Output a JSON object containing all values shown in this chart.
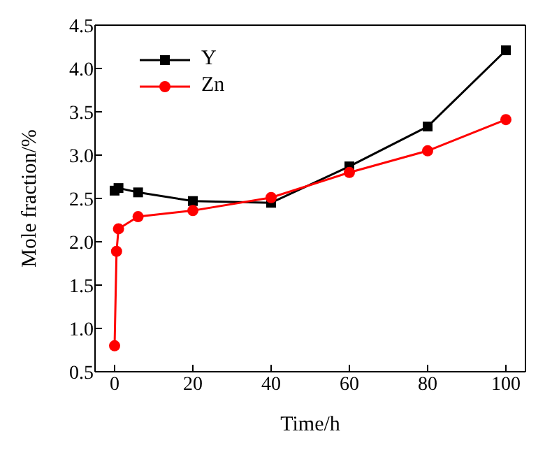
{
  "chart_data": {
    "type": "line",
    "xlabel": "Time/h",
    "ylabel": "Mole fraction/%",
    "xlim": [
      -5,
      105
    ],
    "xticks": [
      0,
      20,
      40,
      60,
      80,
      100
    ],
    "ylim": [
      0.5,
      4.5
    ],
    "yticks": [
      {
        "value": 0.5,
        "label": "0.5"
      },
      {
        "value": 1,
        "label": "1.0"
      },
      {
        "value": 1.5,
        "label": "1.5"
      },
      {
        "value": 2,
        "label": "2.0"
      },
      {
        "value": 2.5,
        "label": "2.5"
      },
      {
        "value": 3,
        "label": "3.0"
      },
      {
        "value": 3.5,
        "label": "3.5"
      },
      {
        "value": 4,
        "label": "4.0"
      },
      {
        "value": 4.5,
        "label": "4.5"
      }
    ],
    "legend": "top left",
    "grid": false,
    "series": [
      {
        "name": "Y",
        "color": "#000000",
        "marker": "square",
        "x": [
          0,
          1,
          6,
          20,
          40,
          60,
          80,
          100
        ],
        "values": [
          2.59,
          2.62,
          2.57,
          2.47,
          2.45,
          2.87,
          3.33,
          4.21
        ]
      },
      {
        "name": "Zn",
        "color": "#ff0000",
        "marker": "circle",
        "x": [
          0,
          0.5,
          1,
          6,
          20,
          40,
          60,
          80,
          100
        ],
        "values": [
          0.8,
          1.89,
          2.15,
          2.29,
          2.36,
          2.51,
          2.8,
          3.05,
          3.41
        ]
      }
    ]
  }
}
